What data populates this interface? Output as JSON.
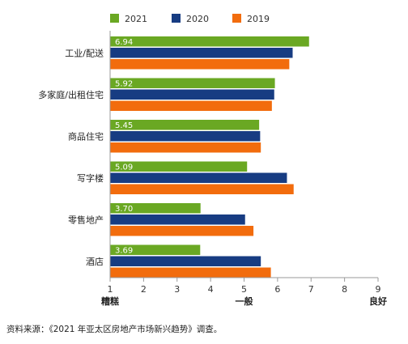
{
  "chart_data": {
    "type": "bar",
    "orientation": "horizontal",
    "categories": [
      "工业/配送",
      "多家庭/出租住宅",
      "商品住宅",
      "写字楼",
      "零售地产",
      "酒店"
    ],
    "series": [
      {
        "name": "2021",
        "color": "#6aa823",
        "values": [
          6.94,
          5.92,
          5.45,
          5.09,
          3.7,
          3.69
        ]
      },
      {
        "name": "2020",
        "color": "#173c82",
        "values": [
          6.45,
          5.9,
          5.48,
          6.28,
          5.03,
          5.5
        ]
      },
      {
        "name": "2019",
        "color": "#f26c0d",
        "values": [
          6.35,
          5.83,
          5.5,
          6.48,
          5.28,
          5.8
        ]
      }
    ],
    "data_labels": [
      "6.94",
      "5.92",
      "5.45",
      "5.09",
      "3.70",
      "3.69"
    ],
    "xlim": [
      1,
      9
    ],
    "xticks": [
      "1",
      "2",
      "3",
      "4",
      "5",
      "6",
      "7",
      "8",
      "9"
    ],
    "x_anchor_labels": [
      {
        "at": 1,
        "text": "糟糕"
      },
      {
        "at": 5,
        "text": "一般"
      },
      {
        "at": 9,
        "text": "良好"
      }
    ],
    "legend_position": "top"
  },
  "source_note": "资料来源：《2021 年亚太区房地产市场新兴趋势》调查。"
}
